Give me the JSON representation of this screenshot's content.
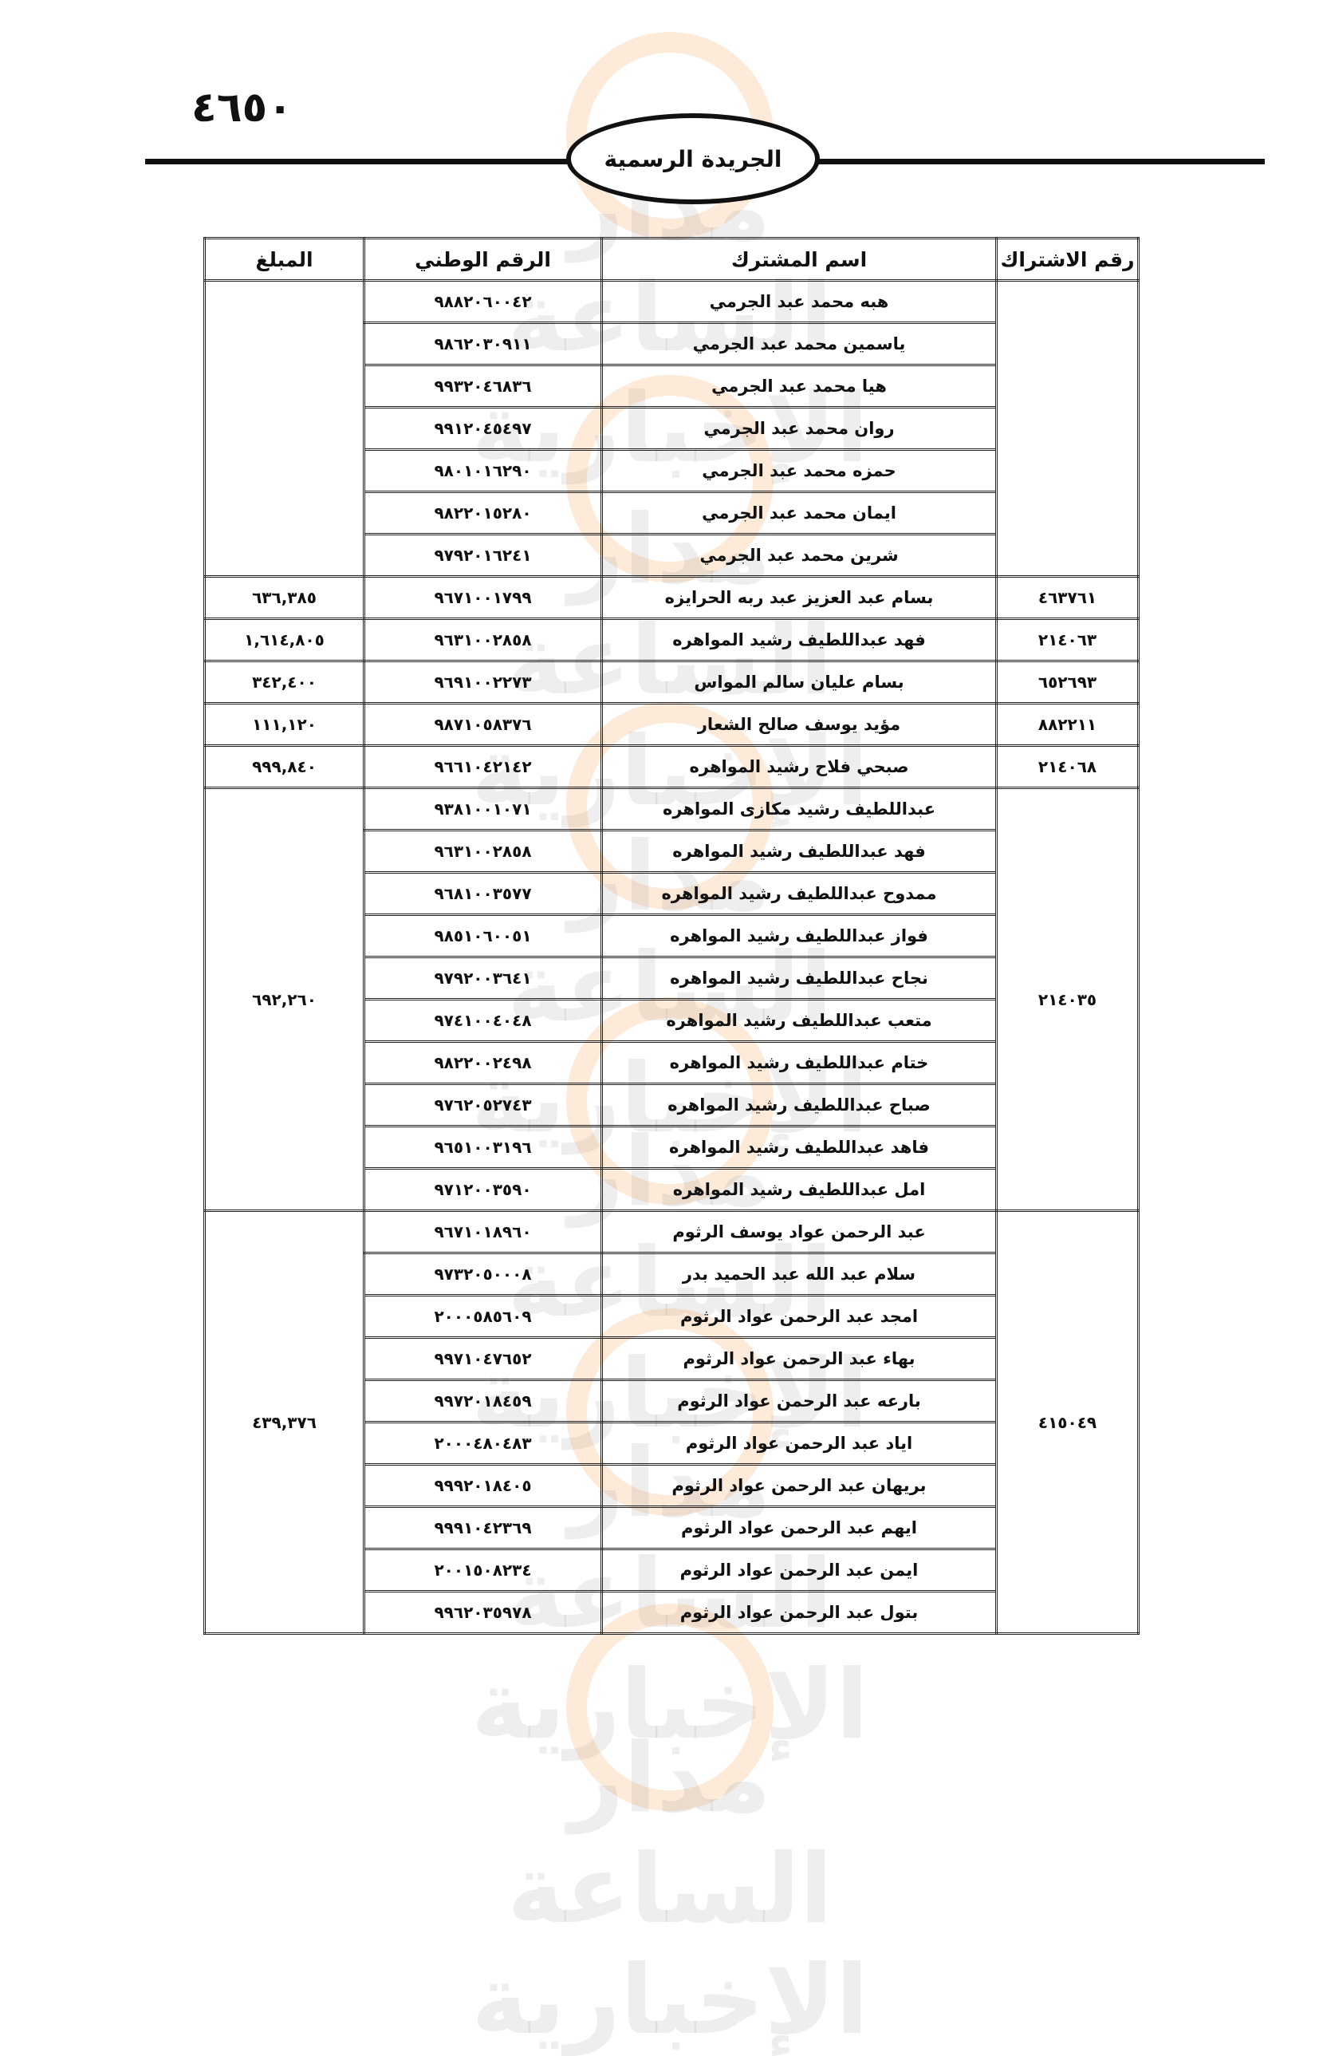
{
  "header": {
    "page_number": "٤٦٥٠",
    "publication_title": "الجريدة الرسمية"
  },
  "watermark": {
    "text": "مدار الساعة الإخبارية"
  },
  "table": {
    "columns": [
      "رقم الاشتراك",
      "اسم المشترك",
      "الرقم الوطني",
      "المبلغ"
    ],
    "groups": [
      {
        "subscription": "",
        "amount": "",
        "members": [
          {
            "name": "هبه محمد عبد الجرمي",
            "nid": "٩٨٨٢٠٦٠٠٤٢"
          },
          {
            "name": "ياسمين محمد عبد الجرمي",
            "nid": "٩٨٦٢٠٣٠٩١١"
          },
          {
            "name": "هيا محمد عبد الجرمي",
            "nid": "٩٩٣٢٠٤٦٨٣٦"
          },
          {
            "name": "روان محمد عبد الجرمي",
            "nid": "٩٩١٢٠٤٥٤٩٧"
          },
          {
            "name": "حمزه محمد عبد الجرمي",
            "nid": "٩٨٠١٠١٦٢٩٠"
          },
          {
            "name": "ايمان محمد عبد الجرمي",
            "nid": "٩٨٢٢٠١٥٢٨٠"
          },
          {
            "name": "شرين محمد عبد الجرمي",
            "nid": "٩٧٩٢٠١٦٢٤١"
          }
        ]
      },
      {
        "subscription": "٤٦٣٧٦١",
        "amount": "٦٣٦,٣٨٥",
        "members": [
          {
            "name": "بسام عبد العزيز عبد ربه الحرايزه",
            "nid": "٩٦٧١٠٠١٧٩٩"
          }
        ]
      },
      {
        "subscription": "٢١٤٠٦٣",
        "amount": "١,٦١٤,٨٠٥",
        "members": [
          {
            "name": "فهد عبداللطيف رشيد المواهره",
            "nid": "٩٦٣١٠٠٢٨٥٨"
          }
        ]
      },
      {
        "subscription": "٦٥٢٦٩٣",
        "amount": "٣٤٢,٤٠٠",
        "members": [
          {
            "name": "بسام عليان سالم المواس",
            "nid": "٩٦٩١٠٠٢٢٧٣"
          }
        ]
      },
      {
        "subscription": "٨٨٢٢١١",
        "amount": "١١١,١٢٠",
        "members": [
          {
            "name": "مؤيد يوسف صالح الشعار",
            "nid": "٩٨٧١٠٥٨٣٧٦"
          }
        ]
      },
      {
        "subscription": "٢١٤٠٦٨",
        "amount": "٩٩٩,٨٤٠",
        "members": [
          {
            "name": "صبحي فلاح رشيد المواهره",
            "nid": "٩٦٦١٠٤٢١٤٢"
          }
        ]
      },
      {
        "subscription": "٢١٤٠٣٥",
        "amount": "٦٩٢,٢٦٠",
        "members": [
          {
            "name": "عبداللطيف رشيد مكازى المواهره",
            "nid": "٩٣٨١٠٠١٠٧١"
          },
          {
            "name": "فهد عبداللطيف رشيد المواهره",
            "nid": "٩٦٣١٠٠٢٨٥٨"
          },
          {
            "name": "ممدوح عبداللطيف رشيد المواهره",
            "nid": "٩٦٨١٠٠٣٥٧٧"
          },
          {
            "name": "فواز عبداللطيف رشيد المواهره",
            "nid": "٩٨٥١٠٦٠٠٥١"
          },
          {
            "name": "نجاح عبداللطيف رشيد المواهره",
            "nid": "٩٧٩٢٠٠٣٦٤١"
          },
          {
            "name": "متعب عبداللطيف رشيد المواهره",
            "nid": "٩٧٤١٠٠٤٠٤٨"
          },
          {
            "name": "ختام عبداللطيف رشيد المواهره",
            "nid": "٩٨٢٢٠٠٢٤٩٨"
          },
          {
            "name": "صباح عبداللطيف رشيد المواهره",
            "nid": "٩٧٦٢٠٥٢٧٤٣"
          },
          {
            "name": "فاهد عبداللطيف رشيد المواهره",
            "nid": "٩٦٥١٠٠٣١٩٦"
          },
          {
            "name": "امل عبداللطيف رشيد المواهره",
            "nid": "٩٧١٢٠٠٣٥٩٠"
          }
        ]
      },
      {
        "subscription": "٤١٥٠٤٩",
        "amount": "٤٣٩,٣٧٦",
        "members": [
          {
            "name": "عبد الرحمن عواد يوسف الرثوم",
            "nid": "٩٦٧١٠١٨٩٦٠"
          },
          {
            "name": "سلام عبد الله عبد الحميد بدر",
            "nid": "٩٧٣٢٠٥٠٠٠٨"
          },
          {
            "name": "امجد عبد الرحمن عواد الرثوم",
            "nid": "٢٠٠٠٥٨٥٦٠٩"
          },
          {
            "name": "بهاء عبد الرحمن عواد الرثوم",
            "nid": "٩٩٧١٠٤٧٦٥٢"
          },
          {
            "name": "بارعه عبد الرحمن عواد الرثوم",
            "nid": "٩٩٧٢٠١٨٤٥٩"
          },
          {
            "name": "اياد عبد الرحمن عواد الرثوم",
            "nid": "٢٠٠٠٤٨٠٤٨٣"
          },
          {
            "name": "بريهان عبد الرحمن عواد الرثوم",
            "nid": "٩٩٩٢٠١٨٤٠٥"
          },
          {
            "name": "ايهم عبد الرحمن عواد الرثوم",
            "nid": "٩٩٩١٠٤٢٣٦٩"
          },
          {
            "name": "ايمن عبد الرحمن عواد الرثوم",
            "nid": "٢٠٠١٥٠٨٢٣٤"
          },
          {
            "name": "بتول عبد الرحمن عواد الرثوم",
            "nid": "٩٩٦٢٠٣٥٩٧٨"
          }
        ]
      }
    ]
  }
}
